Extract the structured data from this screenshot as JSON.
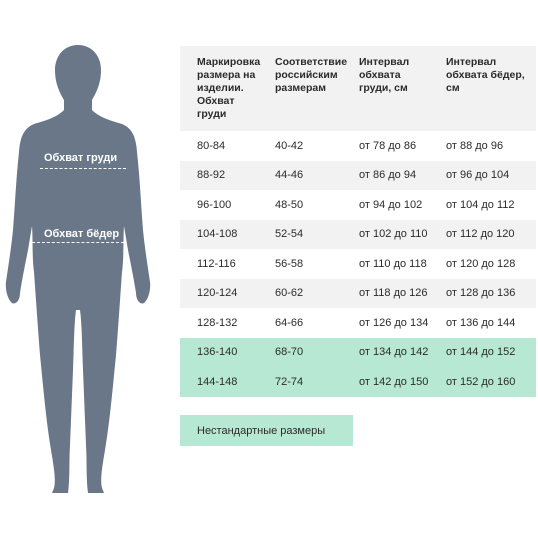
{
  "figure": {
    "chest_label": "Обхват груди",
    "hip_label": "Обхват бёдер",
    "body_color": "#6a7788"
  },
  "table": {
    "headers": [
      "Маркировка размера на изделии. Обхват груди",
      "Соответствие российским размерам",
      "Интервал обхвата груди, см",
      "Интервал обхвата бёдер, см"
    ],
    "rows": [
      {
        "mark": "80-84",
        "ru": "40-42",
        "chest": "от 78 до 86",
        "hips": "от 88 до 96"
      },
      {
        "mark": "88-92",
        "ru": "44-46",
        "chest": "от 86 до 94",
        "hips": "от 96 до 104"
      },
      {
        "mark": "96-100",
        "ru": "48-50",
        "chest": "от 94 до 102",
        "hips": "от 104 до 112"
      },
      {
        "mark": "104-108",
        "ru": "52-54",
        "chest": "от 102 до 110",
        "hips": "от 112 до 120"
      },
      {
        "mark": "112-116",
        "ru": "56-58",
        "chest": "от 110 до 118",
        "hips": "от 120 до 128"
      },
      {
        "mark": "120-124",
        "ru": "60-62",
        "chest": "от 118 до 126",
        "hips": "от 128 до 136"
      },
      {
        "mark": "128-132",
        "ru": "64-66",
        "chest": "от 126 до 134",
        "hips": "от 136 до 144"
      },
      {
        "mark": "136-140",
        "ru": "68-70",
        "chest": "от 134 до 142",
        "hips": "от 144 до 152"
      },
      {
        "mark": "144-148",
        "ru": "72-74",
        "chest": "от 142 до 150",
        "hips": "от 152 до 160"
      }
    ],
    "highlight_color": "#b6e8d3",
    "alt_row_color": "#f2f2f2"
  },
  "legend": {
    "label": "Нестандартные размеры"
  }
}
